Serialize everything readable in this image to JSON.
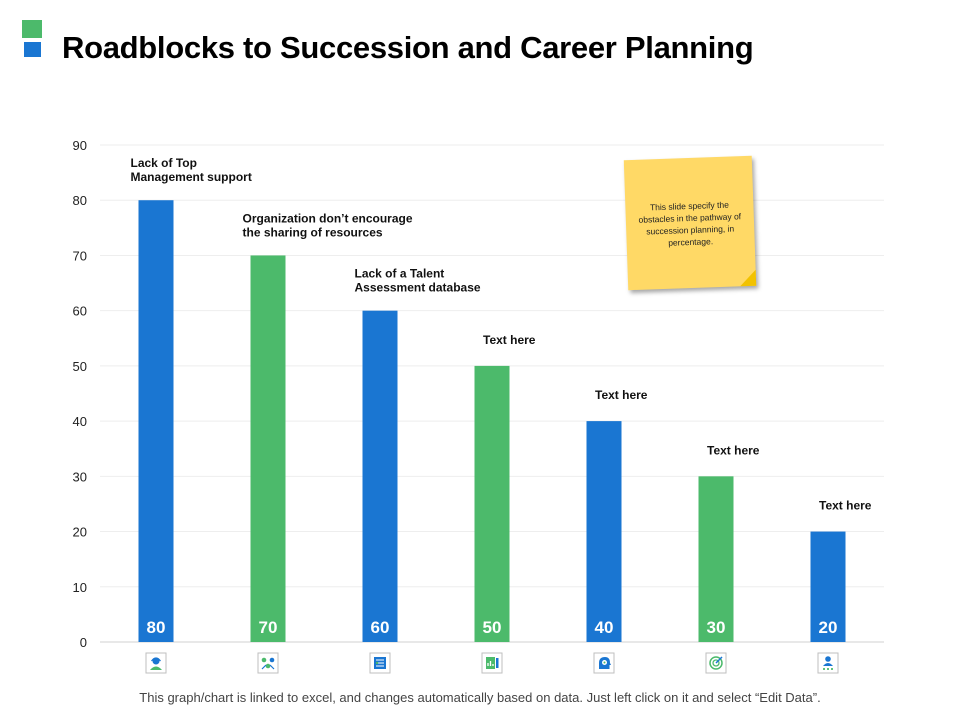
{
  "slide": {
    "title": "Roadblocks to Succession and Career Planning",
    "footer": "This graph/chart is linked to excel, and changes automatically based on data. Just left click on it and select “Edit Data”.",
    "note": "This slide specify the obstacles in the pathway of succession planning, in percentage."
  },
  "colors": {
    "blue": "#1a76d2",
    "green": "#4cba6b",
    "note": "#ffd966"
  },
  "chart_data": {
    "type": "bar",
    "title": "",
    "xlabel": "",
    "ylabel": "",
    "ylim": [
      0,
      90
    ],
    "yticks": [
      0,
      10,
      20,
      30,
      40,
      50,
      60,
      70,
      80,
      90
    ],
    "grid": true,
    "legend": "none",
    "categories": [
      "Lack of Top Management support",
      "Organization don’t encourage the sharing of resources",
      "Lack of a Talent Assessment database",
      "Text here",
      "Text here",
      "Text here",
      "Text here"
    ],
    "label_lines": [
      [
        "Lack of Top",
        "Management support"
      ],
      [
        "Organization don’t encourage",
        "the sharing of resources"
      ],
      [
        "Lack of a Talent",
        "Assessment database"
      ],
      [
        "Text here"
      ],
      [
        "Text here"
      ],
      [
        "Text here"
      ],
      [
        "Text here"
      ]
    ],
    "values": [
      80,
      70,
      60,
      50,
      40,
      30,
      20
    ],
    "bar_colors": [
      "blue",
      "green",
      "blue",
      "green",
      "blue",
      "green",
      "blue"
    ],
    "icons": [
      "person-headset-icon",
      "team-arrows-icon",
      "database-icon",
      "chart-document-icon",
      "head-gear-icon",
      "target-icon",
      "person-stars-icon"
    ]
  }
}
